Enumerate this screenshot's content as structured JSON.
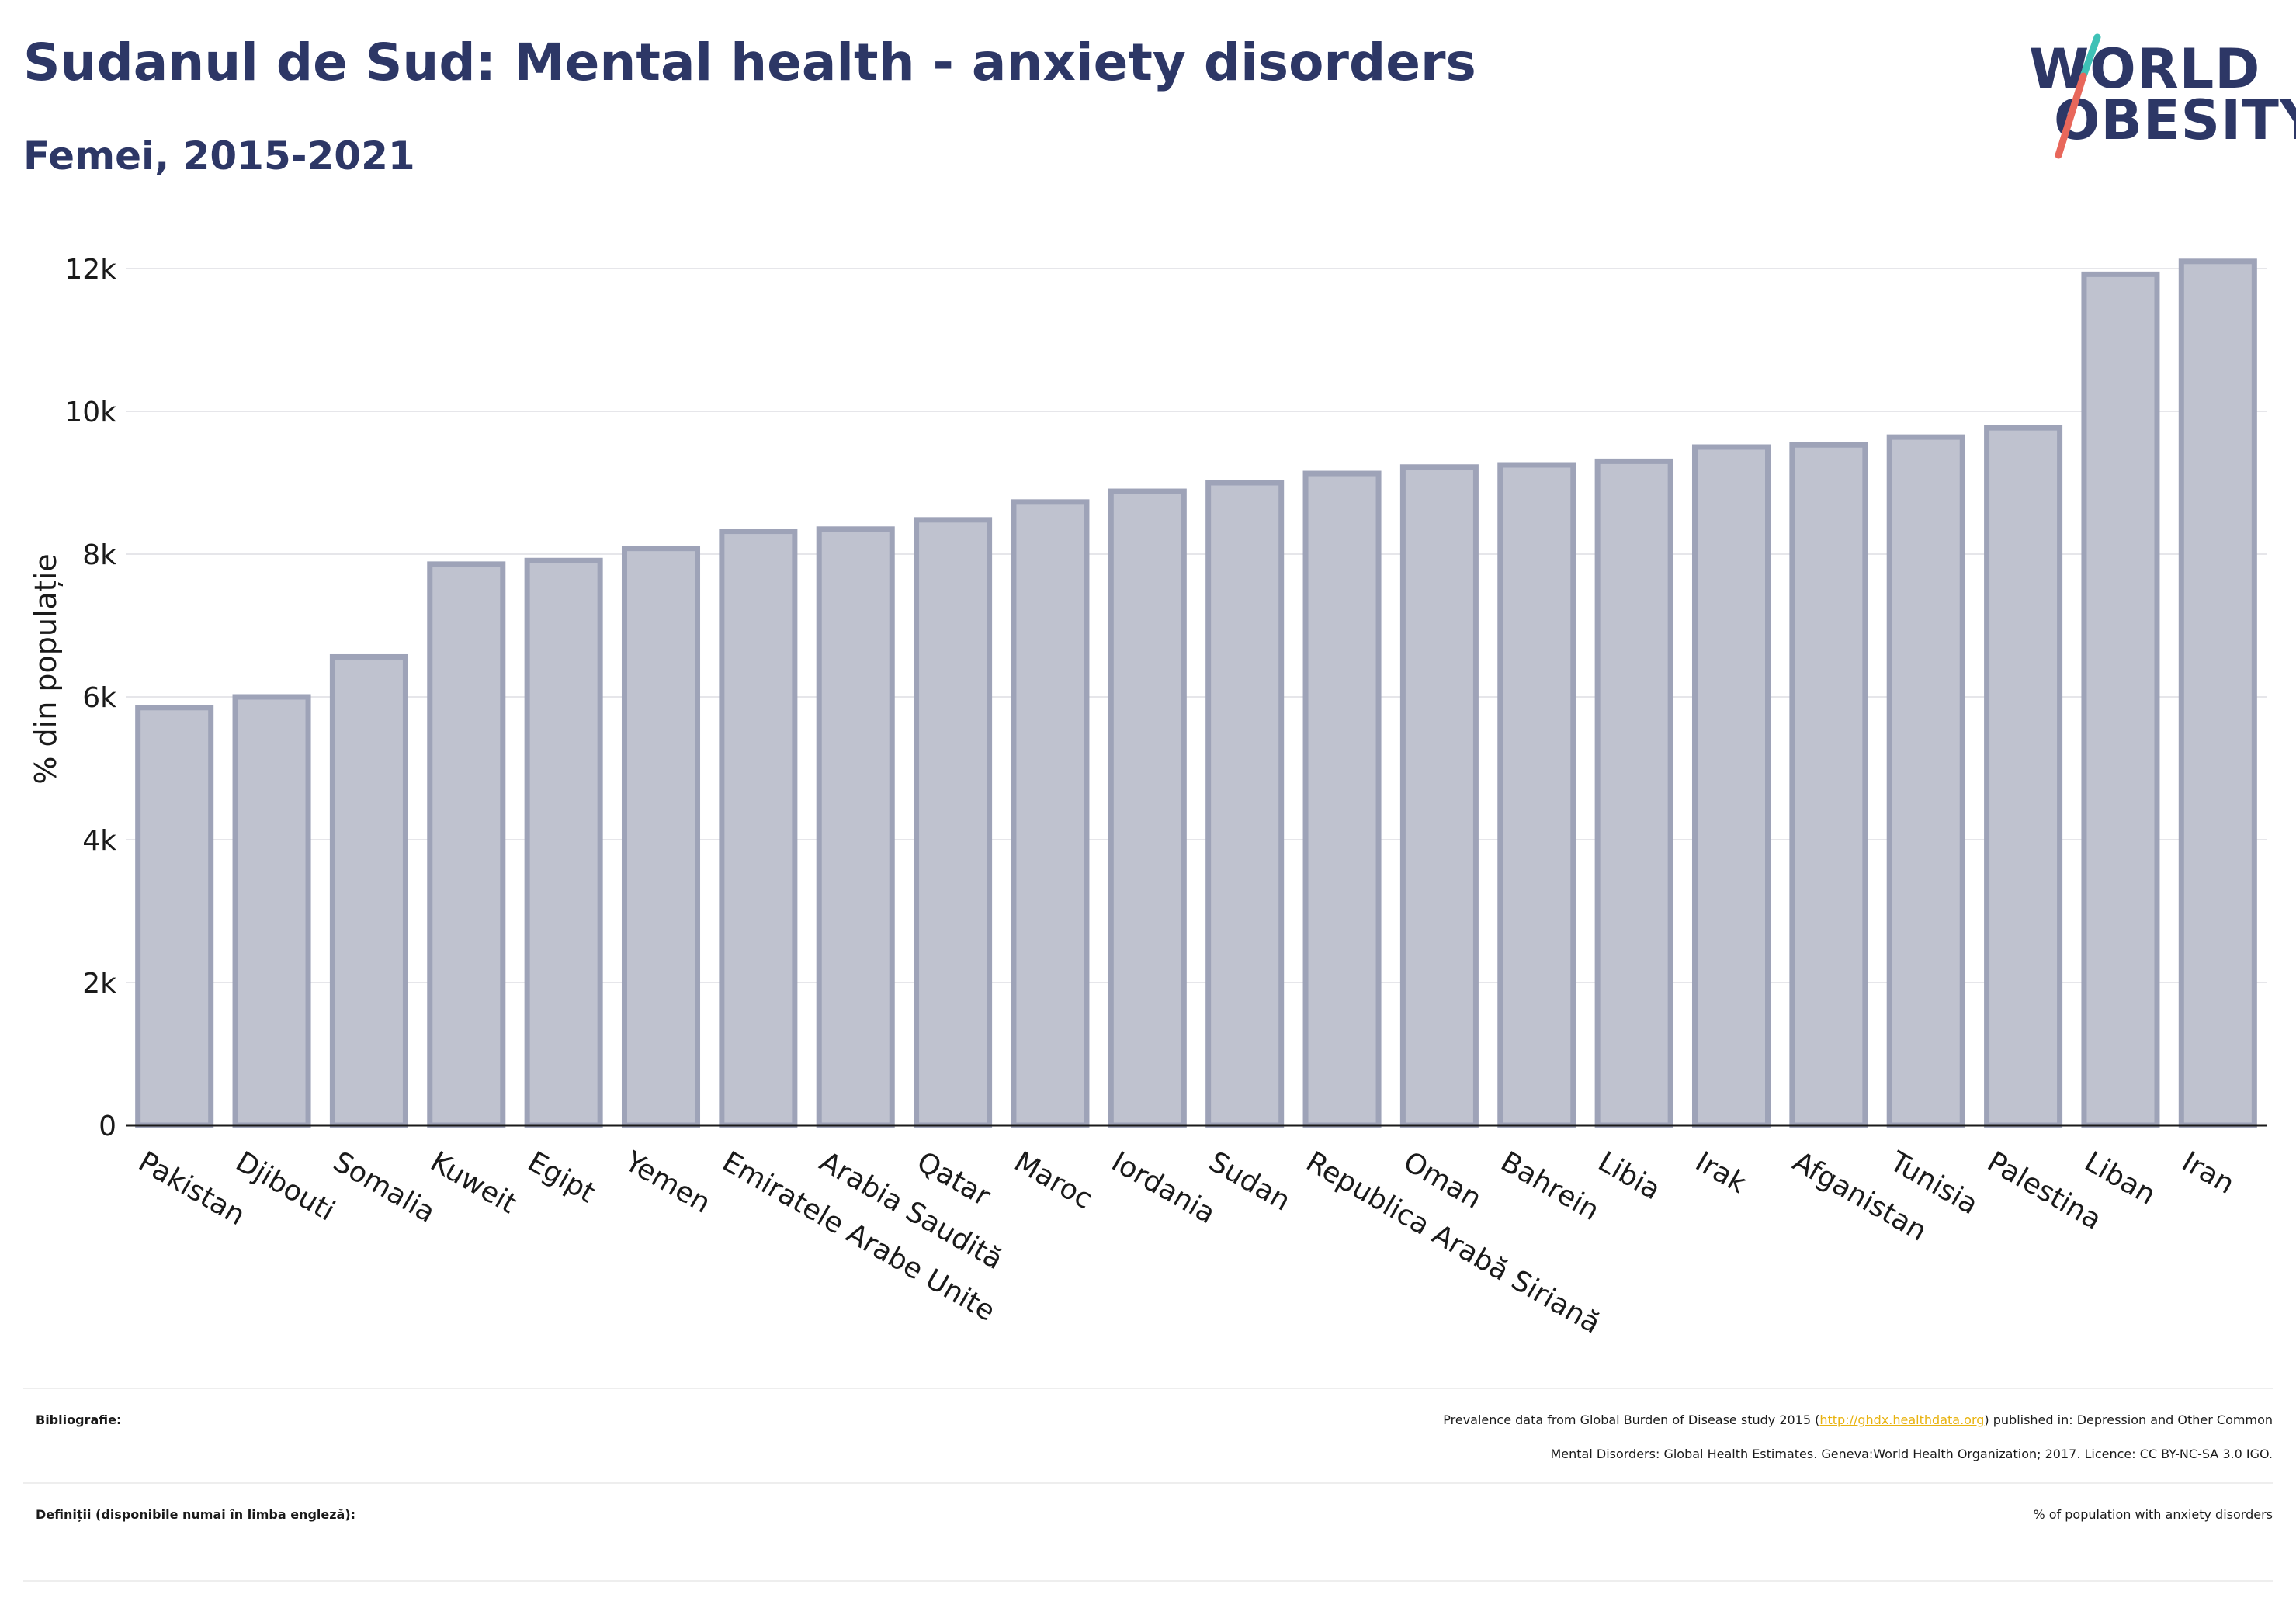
{
  "header": {
    "title": "Sudanul de Sud: Mental health - anxiety disorders",
    "subtitle": "Femei, 2015-2021"
  },
  "logo": {
    "line1": "WORLD",
    "line2": "OBESITY",
    "accent_teal": "#3ec1b6",
    "accent_coral": "#e8675b"
  },
  "colors": {
    "bar_fill": "#bfc2cf",
    "bar_stroke": "#9ea3b8",
    "text_dark": "#2d3766",
    "gridline": "#e6e6ea"
  },
  "chart_data": {
    "type": "bar",
    "ylabel": "% din populație",
    "ylim": [
      0,
      12500
    ],
    "yticks": [
      0,
      2000,
      4000,
      6000,
      8000,
      10000,
      12000
    ],
    "ytick_labels": [
      "0",
      "2k",
      "4k",
      "6k",
      "8k",
      "10k",
      "12k"
    ],
    "grid": true,
    "categories": [
      "Pakistan",
      "Djibouti",
      "Somalia",
      "Kuweit",
      "Egipt",
      "Yemen",
      "Emiratele Arabe Unite",
      "Arabia Saudită",
      "Qatar",
      "Maroc",
      "Iordania",
      "Sudan",
      "Republica Arabă Siriană",
      "Oman",
      "Bahrein",
      "Libia",
      "Irak",
      "Afganistan",
      "Tunisia",
      "Palestina",
      "Liban",
      "Iran"
    ],
    "values": [
      5850,
      6000,
      6560,
      7860,
      7910,
      8080,
      8320,
      8350,
      8480,
      8730,
      8880,
      9000,
      9130,
      9220,
      9250,
      9300,
      9500,
      9530,
      9640,
      9770,
      11920,
      12100
    ]
  },
  "footer": {
    "bibliography_label": "Bibliografie:",
    "bibliography_pre": "Prevalence data from Global Burden of Disease study 2015 (",
    "bibliography_link": "http://ghdx.healthdata.org",
    "bibliography_post": ") published in: Depression and Other Common",
    "bibliography_line2": "Mental Disorders: Global Health Estimates. Geneva:World Health Organization; 2017. Licence: CC BY-NC-SA 3.0 IGO.",
    "definitions_label": "Definiții (disponibile numai în limba engleză):",
    "definitions_text": "% of population with anxiety disorders"
  }
}
